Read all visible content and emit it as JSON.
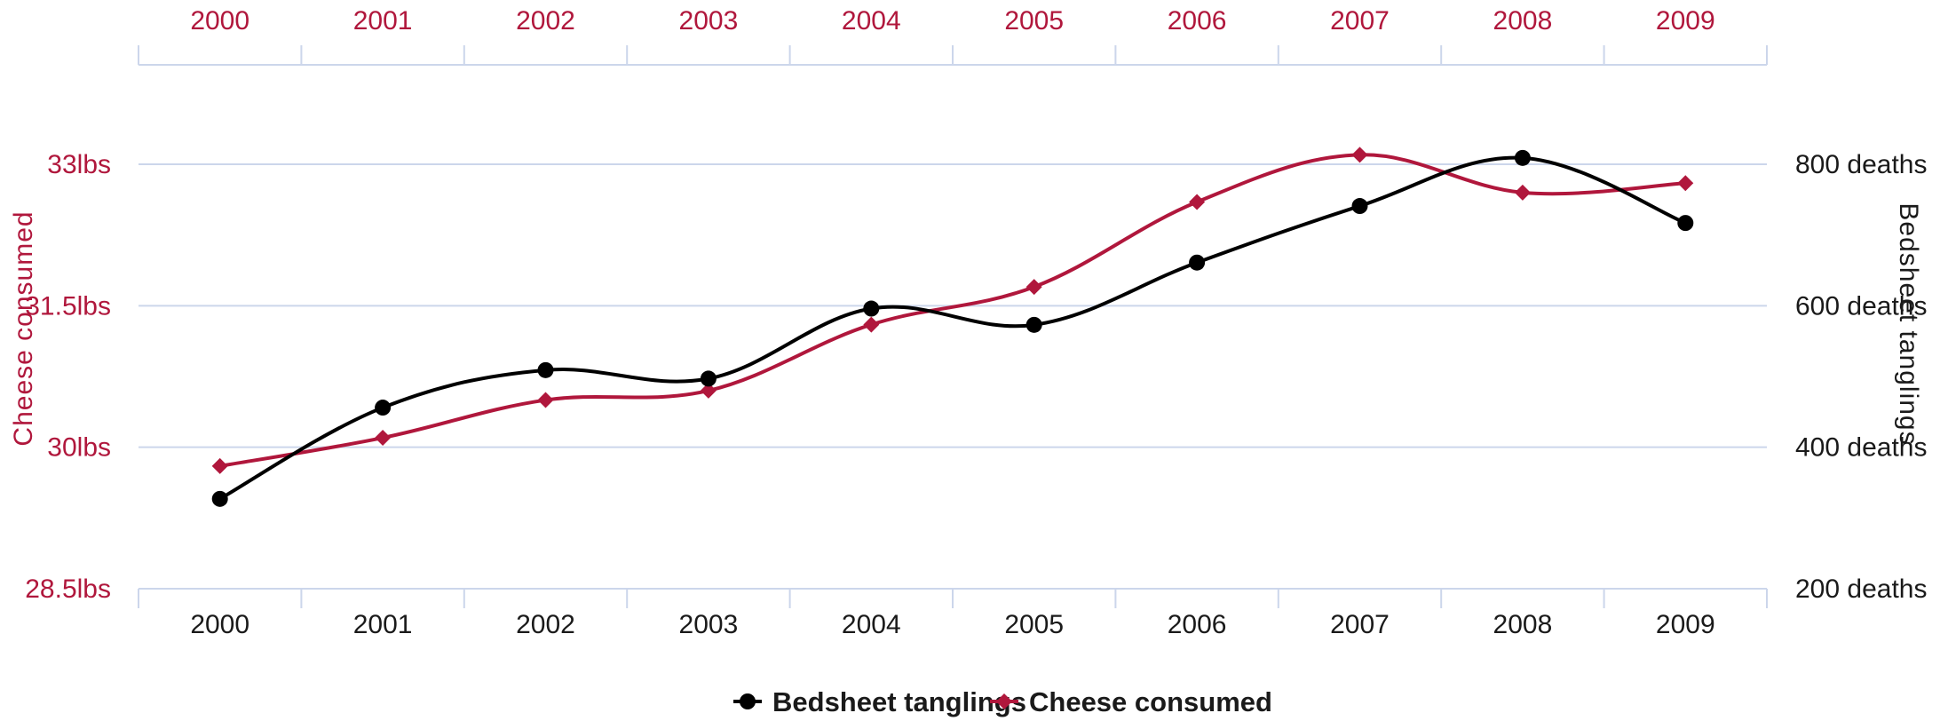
{
  "chart_data": {
    "type": "line",
    "x": [
      "2000",
      "2001",
      "2002",
      "2003",
      "2004",
      "2005",
      "2006",
      "2007",
      "2008",
      "2009"
    ],
    "y_left": {
      "label": "Cheese consumed",
      "ticks": [
        "28.5lbs",
        "30lbs",
        "31.5lbs",
        "33lbs"
      ],
      "range": [
        28.5,
        33
      ],
      "color": "#b0173c"
    },
    "y_right": {
      "label": "Bedsheet tanglings",
      "ticks": [
        "200 deaths",
        "400 deaths",
        "600 deaths",
        "800 deaths"
      ],
      "range": [
        200,
        800
      ],
      "color": "#1a1a1a"
    },
    "series": [
      {
        "name": "Bedsheet tanglings",
        "axis": "right",
        "color": "#000000",
        "marker": "circle",
        "values": [
          327,
          456,
          509,
          497,
          596,
          573,
          661,
          741,
          809,
          717
        ]
      },
      {
        "name": "Cheese consumed",
        "axis": "left",
        "color": "#b0173c",
        "marker": "diamond",
        "values": [
          29.8,
          30.1,
          30.5,
          30.6,
          31.3,
          31.7,
          32.6,
          33.1,
          32.7,
          32.8
        ]
      }
    ],
    "grid": true,
    "legend_position": "bottom-center"
  }
}
